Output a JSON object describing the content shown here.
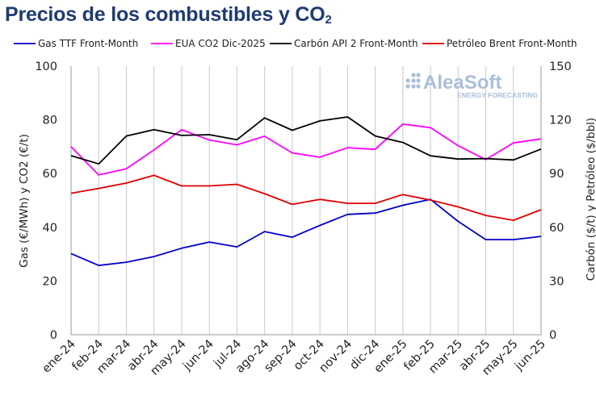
{
  "chart_data": {
    "type": "line",
    "title_main": "Precios de los combustibles y CO",
    "title_sub": "2",
    "categories": [
      "ene-24",
      "feb-24",
      "mar-24",
      "abr-24",
      "may-24",
      "jun-24",
      "jul-24",
      "ago-24",
      "sep-24",
      "oct-24",
      "nov-24",
      "dic-24",
      "ene-25",
      "feb-25",
      "mar-25",
      "abr-25",
      "may-25",
      "jun-25"
    ],
    "ylabel_left": "Gas (€/MWh) y CO2 (€/t)",
    "ylabel_right": "Carbón ($/t) y Petróleo ($/bbl)",
    "ylim_left": [
      0,
      100
    ],
    "yticks_left": [
      0,
      20,
      40,
      60,
      80,
      100
    ],
    "ylim_right": [
      0,
      150
    ],
    "yticks_right": [
      0,
      30,
      60,
      90,
      120,
      150
    ],
    "grid": "vertical",
    "legend_position": "top",
    "series": [
      {
        "name": "Gas TTF Front-Month",
        "axis": "left",
        "color": "#0000cc",
        "values": [
          30.2,
          25.8,
          27.0,
          29.1,
          32.2,
          34.5,
          32.7,
          38.4,
          36.3,
          40.7,
          44.8,
          45.3,
          48.2,
          50.4,
          42.2,
          35.4,
          35.4,
          36.6
        ]
      },
      {
        "name": "EUA CO2 Dic-2025",
        "axis": "left",
        "color": "#ff00ff",
        "values": [
          70.0,
          59.5,
          61.8,
          68.8,
          76.3,
          72.5,
          70.7,
          73.9,
          67.7,
          66.1,
          69.6,
          69.0,
          78.4,
          77.1,
          70.4,
          65.2,
          71.4,
          72.9
        ]
      },
      {
        "name": "Carbón API 2 Front-Month",
        "axis": "right",
        "color": "#000000",
        "values": [
          100.0,
          95.4,
          111.0,
          114.5,
          111.3,
          111.7,
          108.9,
          121.1,
          114.2,
          119.4,
          121.6,
          111.0,
          107.4,
          99.9,
          98.1,
          98.4,
          97.6,
          103.7
        ]
      },
      {
        "name": "Petróleo Brent Front-Month",
        "axis": "right",
        "color": "#e00000",
        "values": [
          79.0,
          81.7,
          84.7,
          89.0,
          83.1,
          83.1,
          84.0,
          78.8,
          72.8,
          75.6,
          73.4,
          73.4,
          78.3,
          75.2,
          71.4,
          66.6,
          63.9,
          69.8
        ]
      }
    ]
  },
  "logo": {
    "name": "AleaSoft",
    "tagline": "ENERGY FORECASTING",
    "color": "#a9bfd9"
  }
}
